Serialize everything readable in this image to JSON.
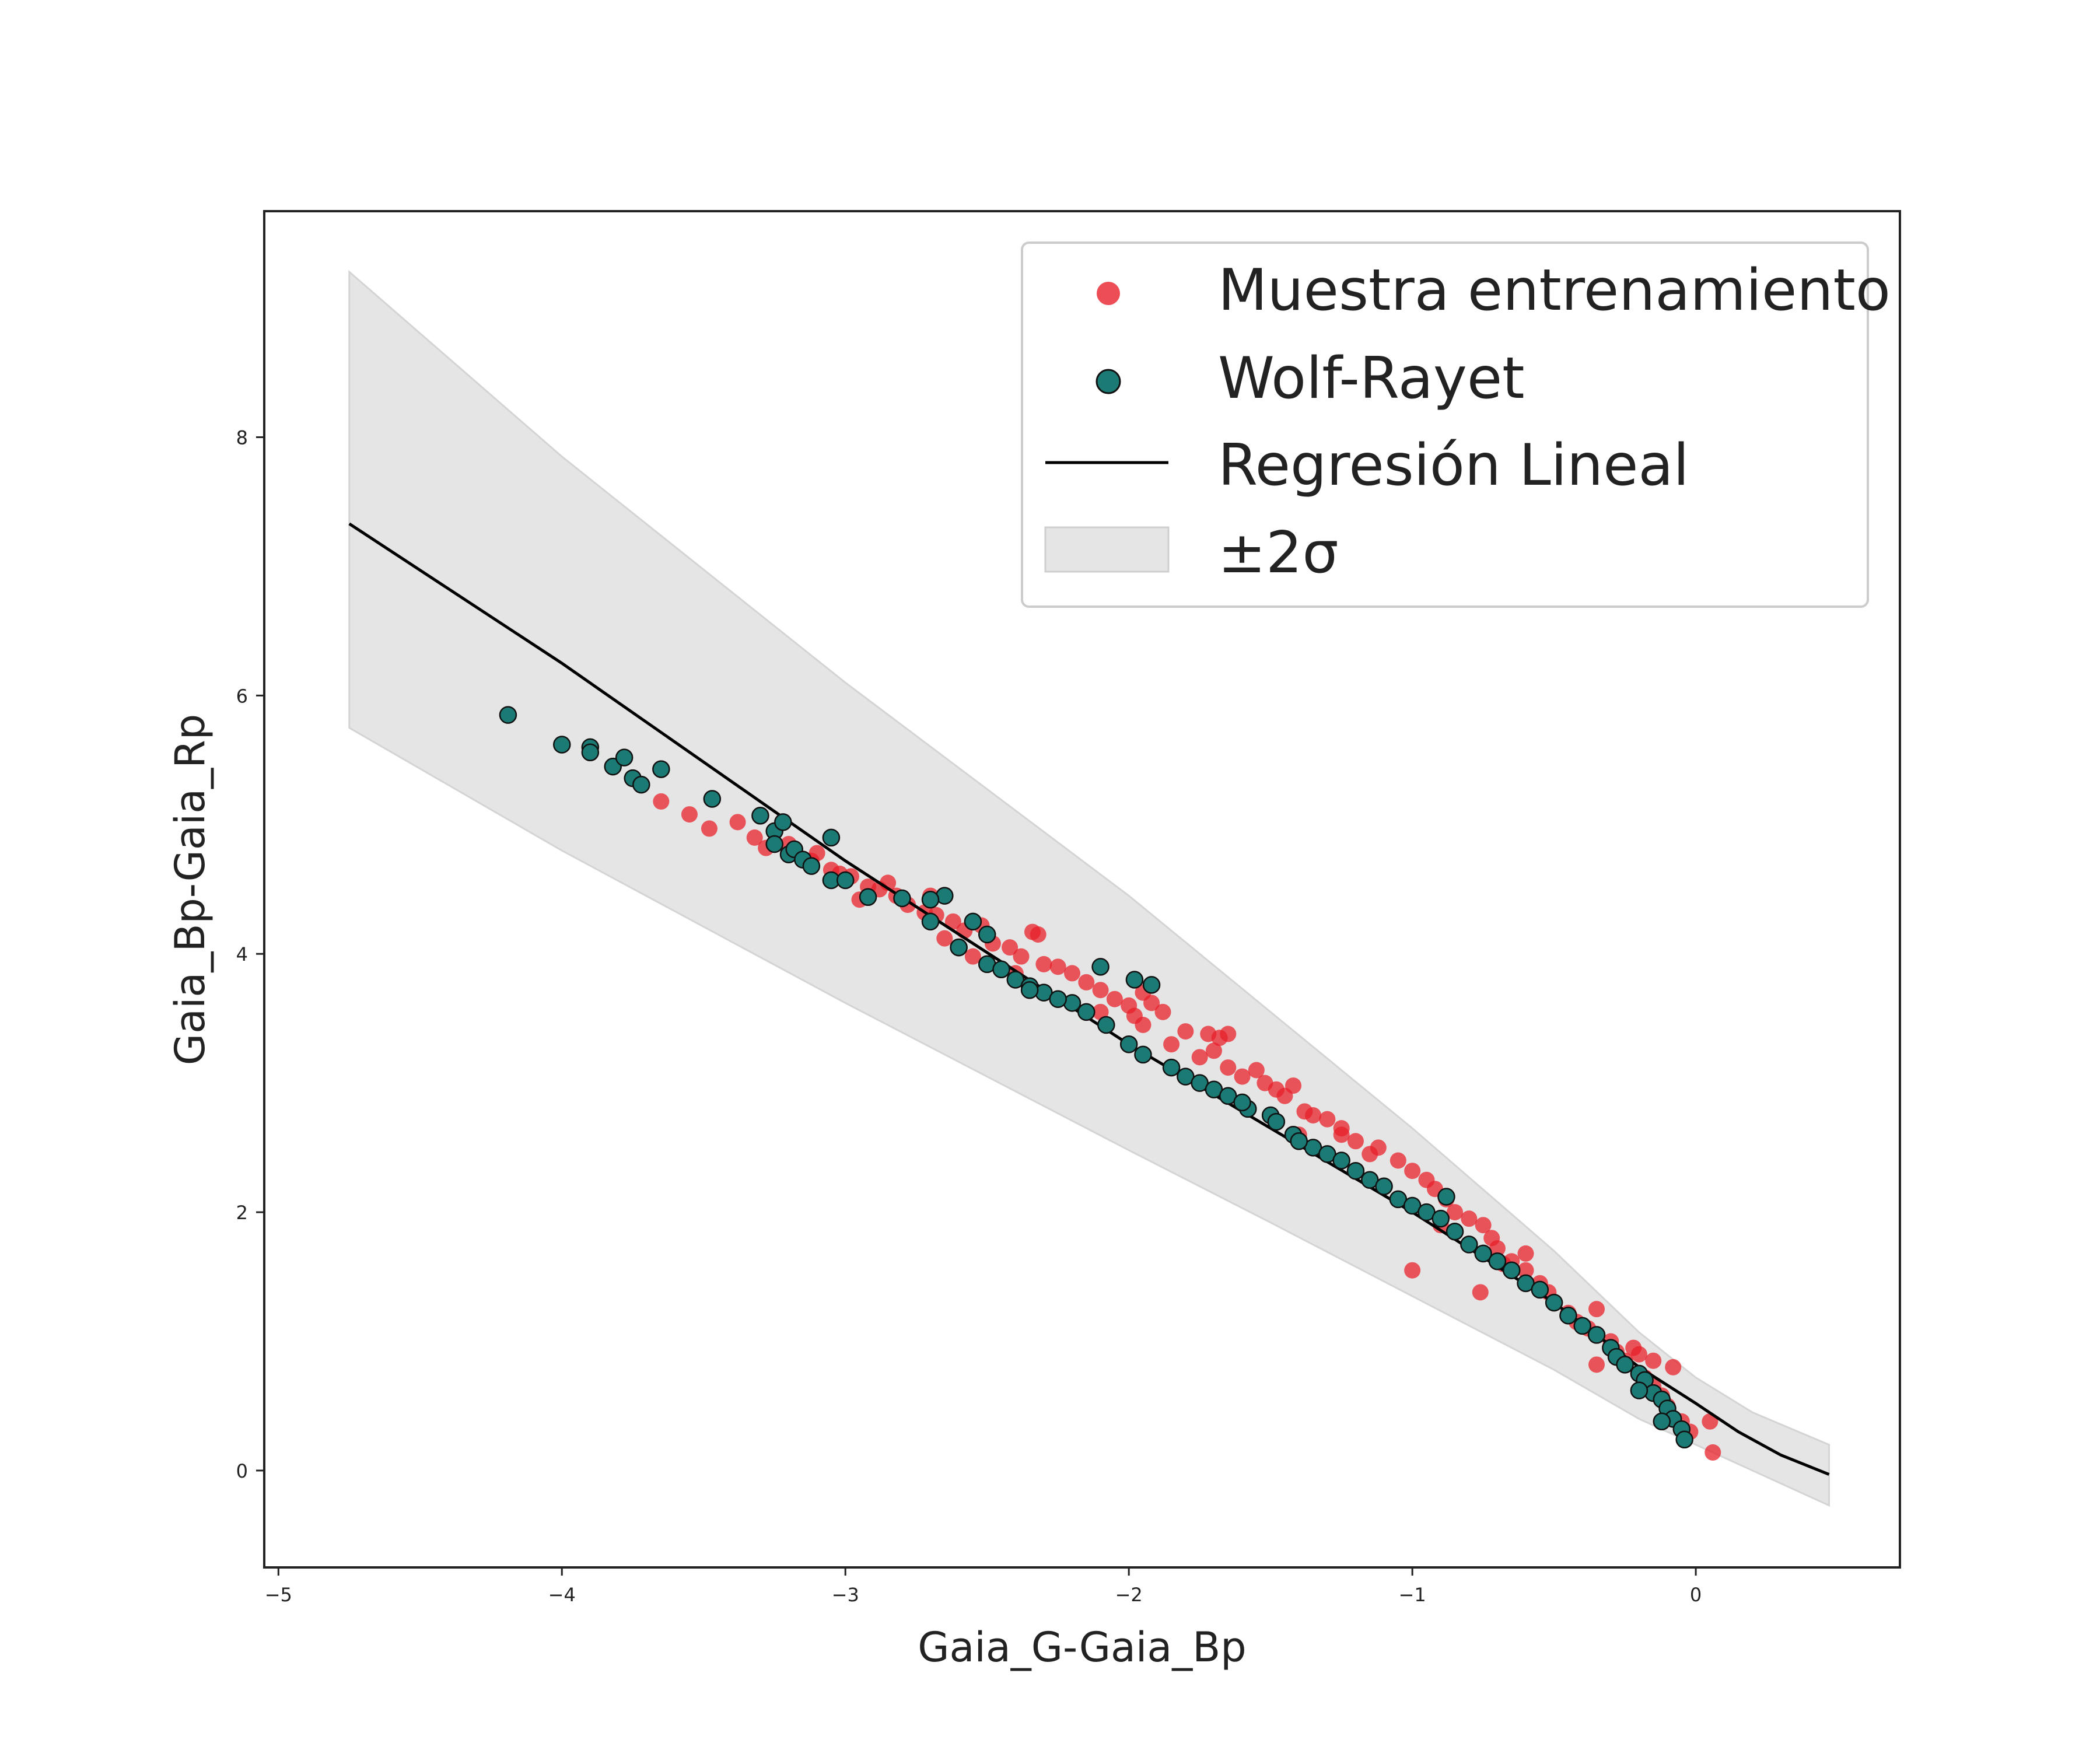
{
  "chart_data": {
    "type": "scatter",
    "xlabel": "Gaia_G-Gaia_Bp",
    "ylabel": "Gaia_Bp-Gaia_Rp",
    "xlim": [
      -5.05,
      0.72
    ],
    "ylim": [
      -0.75,
      9.75
    ],
    "x_ticks": [
      -5,
      -4,
      -3,
      -2,
      -1,
      0
    ],
    "y_ticks": [
      0,
      2,
      4,
      6,
      8
    ],
    "grid": false,
    "legend_position": "top-right",
    "colors": {
      "training": "#e8202a",
      "wolf_rayet": "#1b7a74",
      "regression": "#000000",
      "band": "#e5e5e5"
    },
    "legend": [
      {
        "label": "Muestra entrenamiento",
        "kind": "dot-red"
      },
      {
        "label": "Wolf-Rayet",
        "kind": "dot-teal"
      },
      {
        "label": "Regresión Lineal",
        "kind": "line"
      },
      {
        "label": "±2σ",
        "kind": "band"
      }
    ],
    "series": [
      {
        "name": "Regresión Lineal",
        "type": "line",
        "points": [
          [
            -4.75,
            7.33
          ],
          [
            -4.0,
            6.25
          ],
          [
            -3.0,
            4.72
          ],
          [
            -2.0,
            3.3
          ],
          [
            -1.5,
            2.65
          ],
          [
            -1.0,
            2.0
          ],
          [
            -0.5,
            1.3
          ],
          [
            -0.2,
            0.8
          ],
          [
            0.0,
            0.52
          ],
          [
            0.15,
            0.3
          ],
          [
            0.3,
            0.12
          ],
          [
            0.47,
            -0.03
          ]
        ]
      },
      {
        "name": "±2σ",
        "type": "band",
        "upper": [
          [
            -4.75,
            9.28
          ],
          [
            -4.0,
            7.85
          ],
          [
            -3.0,
            6.1
          ],
          [
            -2.0,
            4.45
          ],
          [
            -1.5,
            3.55
          ],
          [
            -1.0,
            2.65
          ],
          [
            -0.5,
            1.7
          ],
          [
            -0.2,
            1.07
          ],
          [
            0.0,
            0.72
          ],
          [
            0.2,
            0.45
          ],
          [
            0.47,
            0.2
          ]
        ],
        "lower": [
          [
            -4.75,
            5.75
          ],
          [
            -4.0,
            4.8
          ],
          [
            -3.0,
            3.62
          ],
          [
            -2.0,
            2.48
          ],
          [
            -1.5,
            1.92
          ],
          [
            -1.0,
            1.35
          ],
          [
            -0.5,
            0.78
          ],
          [
            -0.2,
            0.4
          ],
          [
            0.0,
            0.2
          ],
          [
            0.2,
            0.0
          ],
          [
            0.47,
            -0.27
          ]
        ]
      },
      {
        "name": "Muestra entrenamiento",
        "type": "scatter",
        "points": [
          [
            -3.65,
            5.18
          ],
          [
            -3.55,
            5.08
          ],
          [
            -3.48,
            4.97
          ],
          [
            -3.38,
            5.02
          ],
          [
            -3.32,
            4.9
          ],
          [
            -3.28,
            4.82
          ],
          [
            -3.2,
            4.85
          ],
          [
            -3.12,
            4.72
          ],
          [
            -3.05,
            4.65
          ],
          [
            -3.02,
            4.62
          ],
          [
            -2.98,
            4.6
          ],
          [
            -2.92,
            4.52
          ],
          [
            -2.88,
            4.5
          ],
          [
            -2.82,
            4.45
          ],
          [
            -2.78,
            4.38
          ],
          [
            -2.72,
            4.32
          ],
          [
            -2.68,
            4.3
          ],
          [
            -2.62,
            4.25
          ],
          [
            -2.58,
            4.18
          ],
          [
            -2.52,
            4.22
          ],
          [
            -2.48,
            4.08
          ],
          [
            -2.42,
            4.05
          ],
          [
            -2.38,
            3.98
          ],
          [
            -2.32,
            4.15
          ],
          [
            -2.3,
            3.92
          ],
          [
            -2.25,
            3.9
          ],
          [
            -2.2,
            3.85
          ],
          [
            -2.15,
            3.78
          ],
          [
            -2.1,
            3.72
          ],
          [
            -2.05,
            3.65
          ],
          [
            -2.0,
            3.6
          ],
          [
            -1.98,
            3.52
          ],
          [
            -1.95,
            3.45
          ],
          [
            -1.92,
            3.62
          ],
          [
            -1.88,
            3.55
          ],
          [
            -1.85,
            3.3
          ],
          [
            -1.8,
            3.4
          ],
          [
            -1.75,
            3.2
          ],
          [
            -1.72,
            3.38
          ],
          [
            -1.68,
            3.35
          ],
          [
            -1.65,
            3.12
          ],
          [
            -1.6,
            3.05
          ],
          [
            -1.55,
            3.1
          ],
          [
            -1.52,
            3.0
          ],
          [
            -1.48,
            2.95
          ],
          [
            -1.45,
            2.9
          ],
          [
            -1.42,
            2.98
          ],
          [
            -1.38,
            2.78
          ],
          [
            -1.35,
            2.75
          ],
          [
            -1.3,
            2.72
          ],
          [
            -1.25,
            2.6
          ],
          [
            -1.2,
            2.55
          ],
          [
            -1.15,
            2.45
          ],
          [
            -1.12,
            2.5
          ],
          [
            -1.05,
            2.4
          ],
          [
            -1.0,
            2.32
          ],
          [
            -0.95,
            2.25
          ],
          [
            -0.92,
            2.18
          ],
          [
            -0.88,
            2.1
          ],
          [
            -0.85,
            2.0
          ],
          [
            -0.8,
            1.95
          ],
          [
            -0.75,
            1.9
          ],
          [
            -0.72,
            1.8
          ],
          [
            -0.7,
            1.72
          ],
          [
            -0.68,
            1.6
          ],
          [
            -0.65,
            1.62
          ],
          [
            -0.6,
            1.55
          ],
          [
            -0.55,
            1.45
          ],
          [
            -0.52,
            1.38
          ],
          [
            -0.5,
            1.3
          ],
          [
            -0.45,
            1.22
          ],
          [
            -0.42,
            1.15
          ],
          [
            -0.38,
            1.1
          ],
          [
            -0.35,
            1.25
          ],
          [
            -0.3,
            1.0
          ],
          [
            -0.28,
            0.92
          ],
          [
            -0.25,
            0.85
          ],
          [
            -0.22,
            0.95
          ],
          [
            -0.2,
            0.9
          ],
          [
            -0.18,
            0.72
          ],
          [
            -0.15,
            0.65
          ],
          [
            -0.12,
            0.58
          ],
          [
            -0.1,
            0.5
          ],
          [
            -0.08,
            0.8
          ],
          [
            -0.05,
            0.38
          ],
          [
            -0.02,
            0.3
          ],
          [
            0.05,
            0.38
          ],
          [
            0.06,
            0.14
          ],
          [
            -0.76,
            1.38
          ],
          [
            -2.34,
            4.17
          ],
          [
            -1.65,
            3.38
          ],
          [
            -1.25,
            2.65
          ],
          [
            -2.55,
            3.98
          ],
          [
            -2.85,
            4.55
          ],
          [
            -3.1,
            4.78
          ],
          [
            -2.7,
            4.45
          ],
          [
            -1.0,
            1.55
          ],
          [
            -0.6,
            1.68
          ],
          [
            -0.15,
            0.85
          ],
          [
            -0.35,
            0.82
          ],
          [
            -1.95,
            3.7
          ],
          [
            -1.4,
            2.6
          ],
          [
            -0.9,
            1.9
          ],
          [
            -2.1,
            3.55
          ],
          [
            -1.7,
            3.25
          ],
          [
            -2.4,
            3.85
          ],
          [
            -2.65,
            4.12
          ],
          [
            -2.95,
            4.42
          ]
        ]
      },
      {
        "name": "Wolf-Rayet",
        "type": "scatter",
        "points": [
          [
            -4.19,
            5.85
          ],
          [
            -4.0,
            5.62
          ],
          [
            -3.9,
            5.6
          ],
          [
            -3.9,
            5.56
          ],
          [
            -3.82,
            5.45
          ],
          [
            -3.78,
            5.52
          ],
          [
            -3.75,
            5.36
          ],
          [
            -3.72,
            5.31
          ],
          [
            -3.65,
            5.43
          ],
          [
            -3.47,
            5.2
          ],
          [
            -3.3,
            5.07
          ],
          [
            -3.25,
            4.95
          ],
          [
            -3.22,
            5.02
          ],
          [
            -3.25,
            4.85
          ],
          [
            -3.2,
            4.77
          ],
          [
            -3.18,
            4.81
          ],
          [
            -3.15,
            4.73
          ],
          [
            -3.12,
            4.68
          ],
          [
            -3.05,
            4.9
          ],
          [
            -3.05,
            4.57
          ],
          [
            -3.0,
            4.57
          ],
          [
            -2.92,
            4.44
          ],
          [
            -2.8,
            4.43
          ],
          [
            -2.7,
            4.25
          ],
          [
            -2.65,
            4.45
          ],
          [
            -2.7,
            4.42
          ],
          [
            -2.6,
            4.05
          ],
          [
            -2.55,
            4.25
          ],
          [
            -2.5,
            4.15
          ],
          [
            -2.5,
            3.92
          ],
          [
            -2.45,
            3.88
          ],
          [
            -2.4,
            3.8
          ],
          [
            -2.35,
            3.75
          ],
          [
            -2.3,
            3.7
          ],
          [
            -2.2,
            3.62
          ],
          [
            -2.15,
            3.55
          ],
          [
            -2.1,
            3.9
          ],
          [
            -2.08,
            3.45
          ],
          [
            -2.0,
            3.3
          ],
          [
            -1.98,
            3.8
          ],
          [
            -1.95,
            3.22
          ],
          [
            -1.92,
            3.76
          ],
          [
            -1.85,
            3.12
          ],
          [
            -1.8,
            3.05
          ],
          [
            -1.75,
            3.0
          ],
          [
            -1.7,
            2.95
          ],
          [
            -1.65,
            2.9
          ],
          [
            -1.58,
            2.8
          ],
          [
            -1.5,
            2.75
          ],
          [
            -1.48,
            2.7
          ],
          [
            -1.42,
            2.6
          ],
          [
            -1.35,
            2.5
          ],
          [
            -1.3,
            2.45
          ],
          [
            -1.25,
            2.4
          ],
          [
            -1.2,
            2.32
          ],
          [
            -1.15,
            2.25
          ],
          [
            -1.1,
            2.2
          ],
          [
            -1.05,
            2.1
          ],
          [
            -1.0,
            2.05
          ],
          [
            -0.95,
            2.0
          ],
          [
            -0.9,
            1.95
          ],
          [
            -0.88,
            2.12
          ],
          [
            -0.85,
            1.85
          ],
          [
            -0.8,
            1.75
          ],
          [
            -0.75,
            1.68
          ],
          [
            -0.7,
            1.62
          ],
          [
            -0.65,
            1.55
          ],
          [
            -0.6,
            1.45
          ],
          [
            -0.55,
            1.4
          ],
          [
            -0.5,
            1.3
          ],
          [
            -0.45,
            1.2
          ],
          [
            -0.4,
            1.12
          ],
          [
            -0.35,
            1.05
          ],
          [
            -0.3,
            0.95
          ],
          [
            -0.28,
            0.88
          ],
          [
            -0.25,
            0.82
          ],
          [
            -0.2,
            0.75
          ],
          [
            -0.18,
            0.7
          ],
          [
            -0.15,
            0.6
          ],
          [
            -0.12,
            0.55
          ],
          [
            -0.1,
            0.48
          ],
          [
            -0.08,
            0.4
          ],
          [
            -0.05,
            0.32
          ],
          [
            -0.04,
            0.24
          ],
          [
            -0.2,
            0.62
          ],
          [
            -0.12,
            0.38
          ],
          [
            -2.35,
            3.72
          ],
          [
            -2.25,
            3.65
          ],
          [
            -2.6,
            4.05
          ],
          [
            -1.6,
            2.85
          ],
          [
            -1.4,
            2.55
          ]
        ]
      }
    ]
  }
}
